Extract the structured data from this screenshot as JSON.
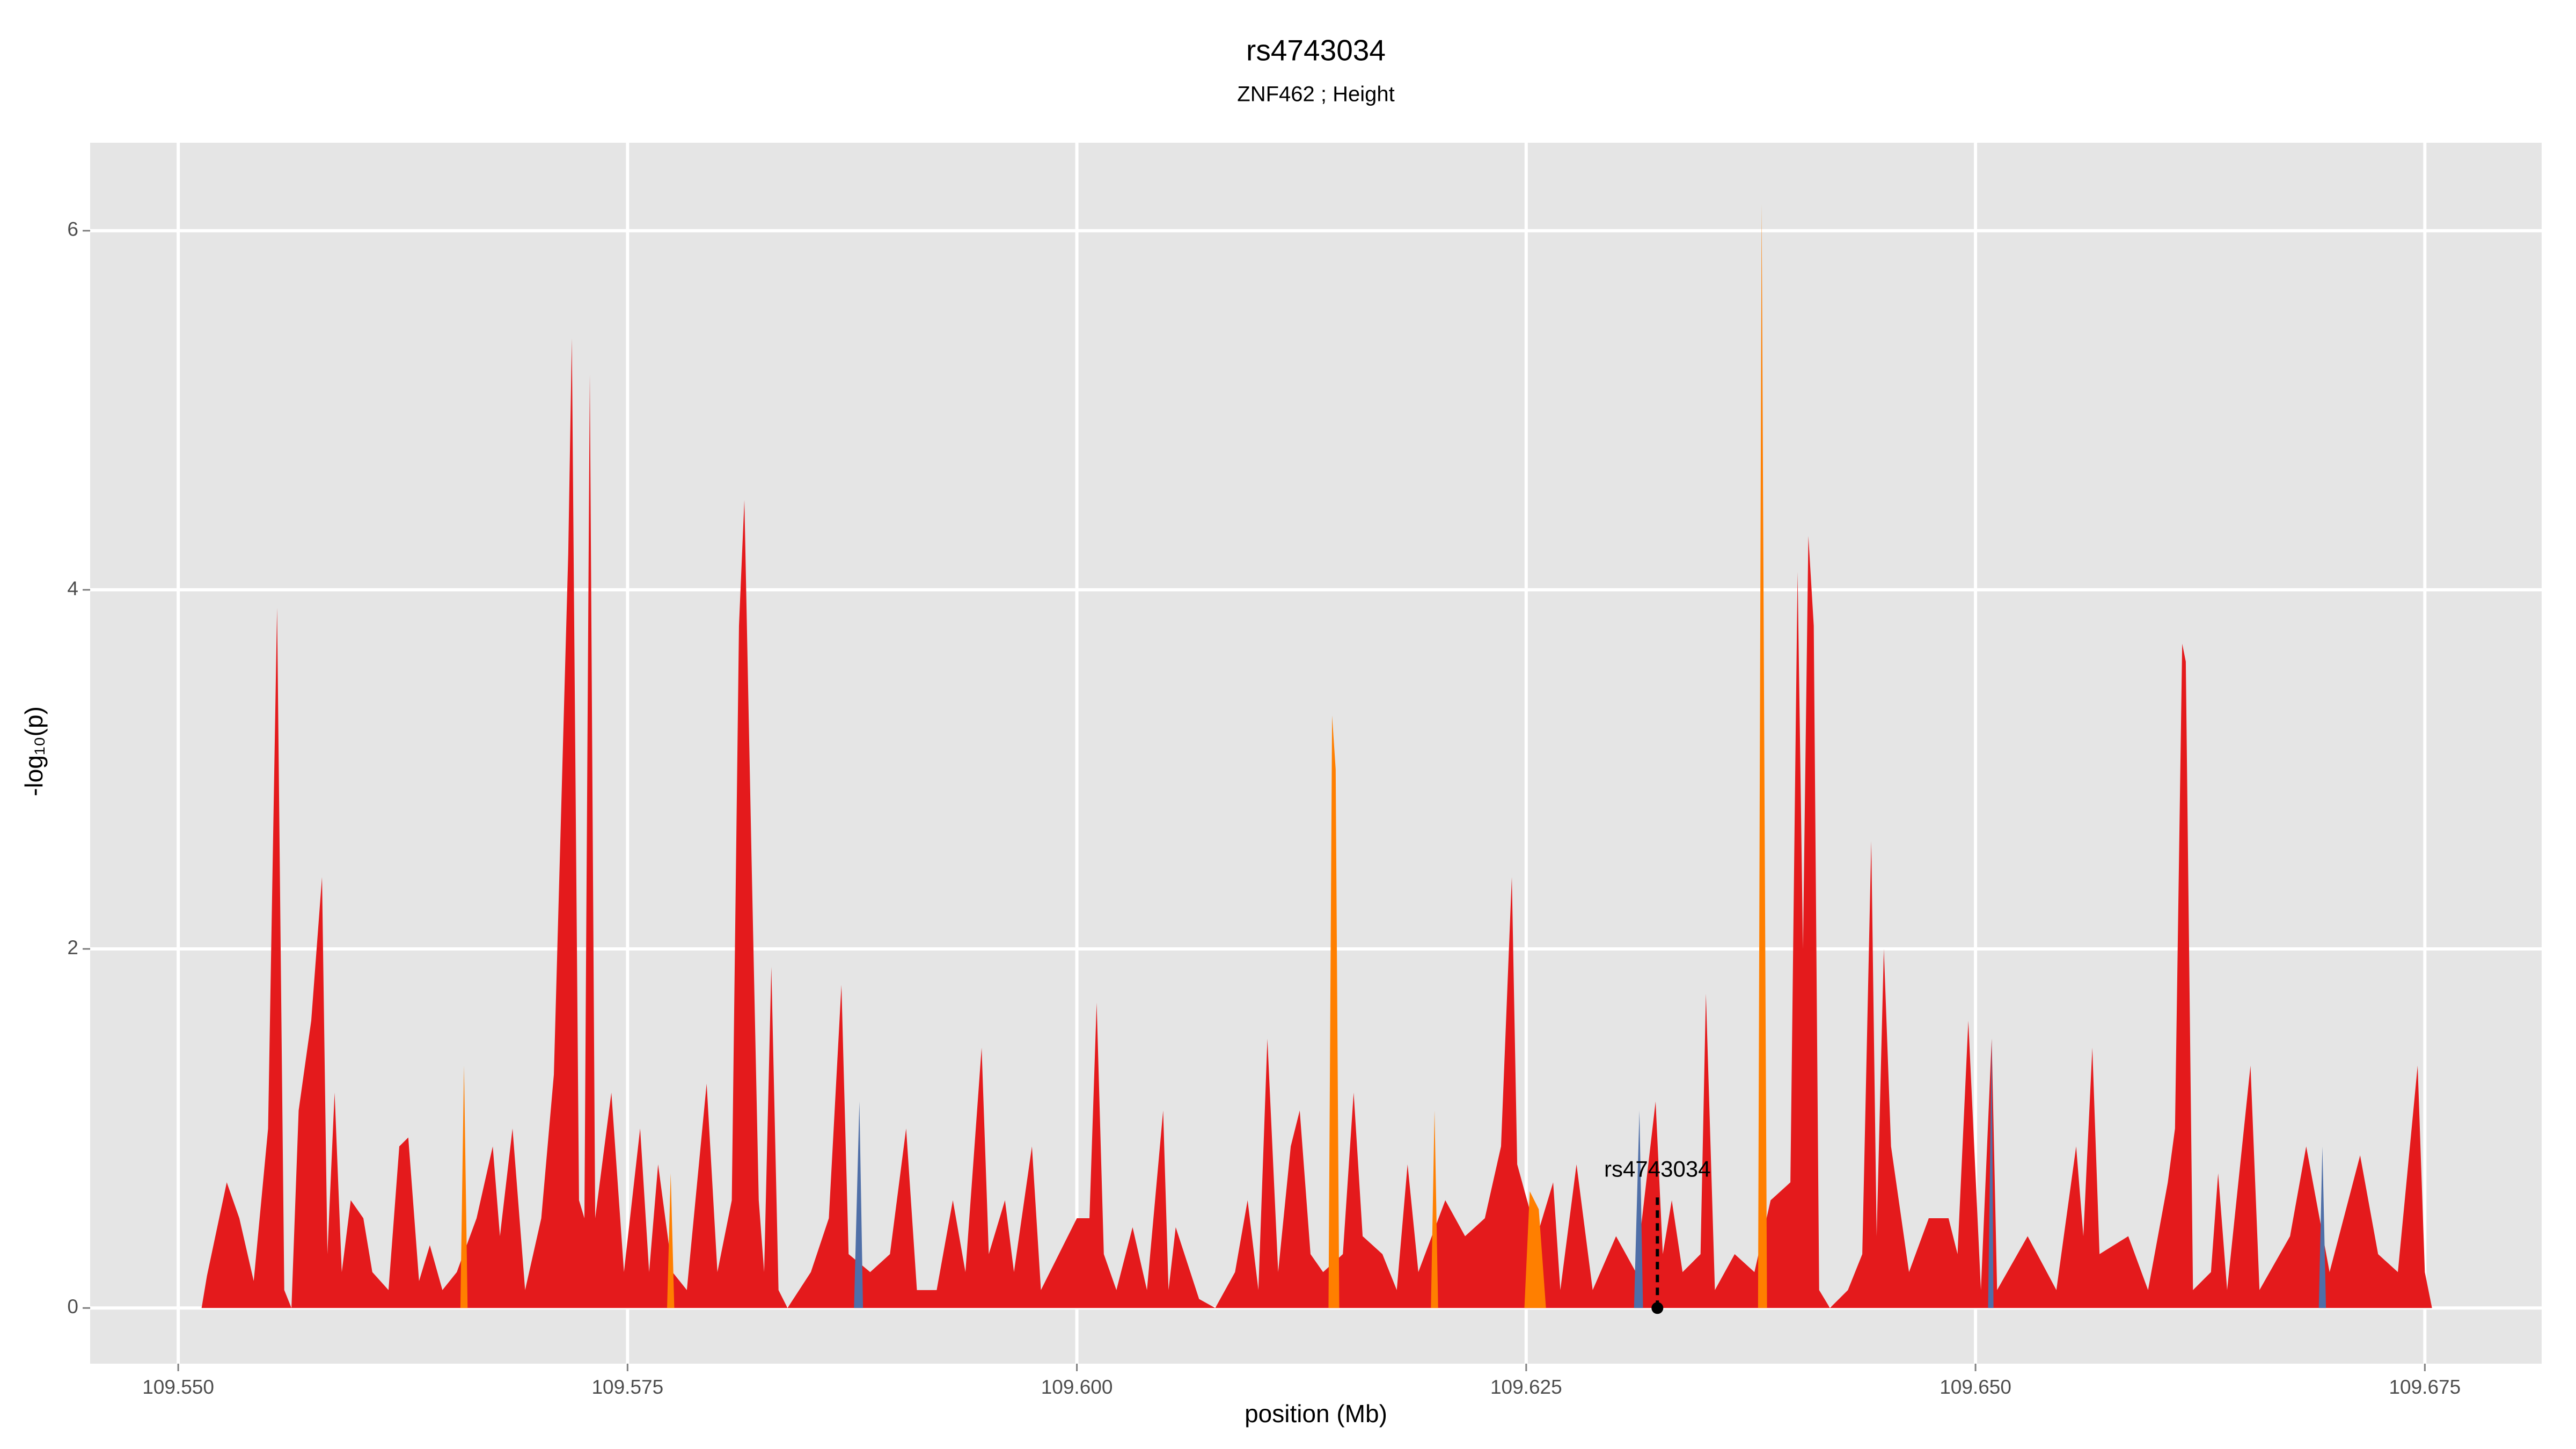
{
  "chart_data": {
    "type": "area",
    "title": "rs4743034",
    "subtitle": "ZNF462 ; Height",
    "x_label": "position (Mb)",
    "y_label": "-log₁₀(p)",
    "xlim": [
      109.5451,
      109.6815
    ],
    "ylim": [
      -0.31,
      6.49
    ],
    "xticks": [
      {
        "value": 109.55,
        "label": "109.550"
      },
      {
        "value": 109.575,
        "label": "109.575"
      },
      {
        "value": 109.6,
        "label": "109.600"
      },
      {
        "value": 109.625,
        "label": "109.625"
      },
      {
        "value": 109.65,
        "label": "109.650"
      },
      {
        "value": 109.675,
        "label": "109.675"
      }
    ],
    "yticks": [
      0,
      2,
      4,
      6
    ],
    "grid": true,
    "series": [
      {
        "color": "#e41a1c",
        "x": [
          109.5513,
          109.5516,
          109.5527,
          109.5534,
          109.5542,
          109.555,
          109.5555,
          109.5559,
          109.5563,
          109.5567,
          109.5574,
          109.558,
          109.5583,
          109.5587,
          109.5591,
          109.5596,
          109.5603,
          109.5608,
          109.5617,
          109.5623,
          109.5628,
          109.5634,
          109.564,
          109.5647,
          109.5655,
          109.5666,
          109.5675,
          109.5679,
          109.5686,
          109.5693,
          109.5702,
          109.5709,
          109.5717,
          109.5719,
          109.5723,
          109.5726,
          109.5729,
          109.5732,
          109.5741,
          109.5748,
          109.5757,
          109.5762,
          109.5767,
          109.5775,
          109.5783,
          109.5794,
          109.58,
          109.5808,
          109.5812,
          109.5815,
          109.5819,
          109.5823,
          109.5826,
          109.583,
          109.5834,
          109.5839,
          109.5852,
          109.5862,
          109.5869,
          109.5873,
          109.5885,
          109.5896,
          109.5905,
          109.5911,
          109.5922,
          109.5931,
          109.5938,
          109.5947,
          109.5951,
          109.596,
          109.5965,
          109.5975,
          109.598,
          109.599,
          109.6,
          109.6007,
          109.6011,
          109.6015,
          109.6022,
          109.6031,
          109.6039,
          109.6048,
          109.6051,
          109.6055,
          109.6068,
          109.6077,
          109.6088,
          109.6095,
          109.6101,
          109.6106,
          109.6112,
          109.6119,
          109.6124,
          109.613,
          109.6137,
          109.6148,
          109.6154,
          109.6159,
          109.617,
          109.6178,
          109.6184,
          109.619,
          109.6205,
          109.6216,
          109.6227,
          109.6236,
          109.6242,
          109.6245,
          109.6256,
          109.6265,
          109.6269,
          109.6278,
          109.6287,
          109.63,
          109.6311,
          109.6322,
          109.6326,
          109.6331,
          109.6337,
          109.6347,
          109.635,
          109.6355,
          109.6366,
          109.6377,
          109.6386,
          109.6397,
          109.6401,
          109.6404,
          109.6407,
          109.641,
          109.6413,
          109.6419,
          109.6429,
          109.6437,
          109.6442,
          109.6445,
          109.6449,
          109.6453,
          109.6463,
          109.6474,
          109.6485,
          109.649,
          109.6496,
          109.6503,
          109.6509,
          109.6512,
          109.6529,
          109.6545,
          109.6556,
          109.656,
          109.6565,
          109.6569,
          109.6585,
          109.6596,
          109.6607,
          109.6611,
          109.6615,
          109.6617,
          109.6621,
          109.6631,
          109.6635,
          109.664,
          109.6653,
          109.6658,
          109.6675,
          109.6684,
          109.6697,
          109.6714,
          109.6724,
          109.6735,
          109.6746,
          109.675,
          109.6754
        ],
        "values": [
          0,
          0.18,
          0.7,
          0.5,
          0.15,
          1.0,
          3.9,
          0.1,
          0.0,
          1.1,
          1.6,
          2.4,
          0.3,
          1.2,
          0.2,
          0.6,
          0.5,
          0.2,
          0.1,
          0.9,
          0.95,
          0.15,
          0.35,
          0.1,
          0.2,
          0.5,
          0.9,
          0.4,
          1.0,
          0.1,
          0.5,
          1.3,
          4.2,
          5.4,
          0.6,
          0.5,
          5.2,
          0.5,
          1.2,
          0.2,
          1.0,
          0.2,
          0.8,
          0.2,
          0.1,
          1.25,
          0.2,
          0.6,
          3.8,
          4.5,
          2.5,
          0.6,
          0.2,
          1.9,
          0.1,
          0.0,
          0.2,
          0.5,
          1.8,
          0.3,
          0.2,
          0.3,
          1.0,
          0.1,
          0.1,
          0.6,
          0.2,
          1.45,
          0.3,
          0.6,
          0.2,
          0.9,
          0.1,
          0.3,
          0.5,
          0.5,
          1.7,
          0.3,
          0.1,
          0.45,
          0.1,
          1.1,
          0.1,
          0.45,
          0.05,
          0.0,
          0.2,
          0.6,
          0.1,
          1.5,
          0.2,
          0.9,
          1.1,
          0.3,
          0.2,
          0.3,
          1.2,
          0.4,
          0.3,
          0.1,
          0.8,
          0.2,
          0.6,
          0.4,
          0.5,
          0.9,
          2.4,
          0.8,
          0.4,
          0.7,
          0.1,
          0.8,
          0.1,
          0.4,
          0.2,
          1.15,
          0.3,
          0.6,
          0.2,
          0.3,
          1.75,
          0.1,
          0.3,
          0.2,
          0.6,
          0.7,
          4.1,
          2.0,
          4.3,
          3.8,
          0.1,
          0.0,
          0.1,
          0.3,
          2.6,
          0.4,
          2.0,
          0.9,
          0.2,
          0.5,
          0.5,
          0.3,
          1.6,
          0.1,
          1.5,
          0.1,
          0.4,
          0.1,
          0.9,
          0.4,
          1.45,
          0.3,
          0.4,
          0.1,
          0.7,
          1.0,
          3.7,
          3.6,
          0.1,
          0.2,
          0.75,
          0.1,
          1.35,
          0.1,
          0.4,
          0.9,
          0.2,
          0.85,
          0.3,
          0.2,
          1.35,
          0.2,
          0.0
        ]
      },
      {
        "color": "#ff7f00",
        "x": [
          109.5657,
          109.5659,
          109.5661,
          null,
          109.5772,
          109.5774,
          109.5776,
          null,
          109.614,
          109.6142,
          109.6144,
          109.6146,
          null,
          109.6197,
          109.6199,
          109.6201,
          null,
          109.6249,
          109.6252,
          109.6257,
          109.6261,
          null,
          109.6379,
          109.6381,
          109.6384
        ],
        "values": [
          0,
          1.35,
          0,
          null,
          0,
          0.75,
          0,
          null,
          0,
          3.3,
          3.0,
          0,
          null,
          0,
          1.1,
          0,
          null,
          0,
          0.65,
          0.55,
          0,
          null,
          0,
          6.15,
          0
        ]
      },
      {
        "color": "#4f6fa8",
        "x": [
          109.5876,
          109.5879,
          109.5881,
          null,
          109.631,
          109.6313,
          109.6315,
          null,
          109.6507,
          109.6509,
          109.651,
          null,
          109.6691,
          109.6693,
          109.6695
        ],
        "values": [
          0,
          1.15,
          0,
          null,
          0,
          1.1,
          0,
          null,
          0,
          1.5,
          0,
          null,
          0,
          0.9,
          0
        ]
      }
    ],
    "annotation": {
      "text": "rs4743034",
      "x": 109.6323,
      "y": 0
    }
  }
}
